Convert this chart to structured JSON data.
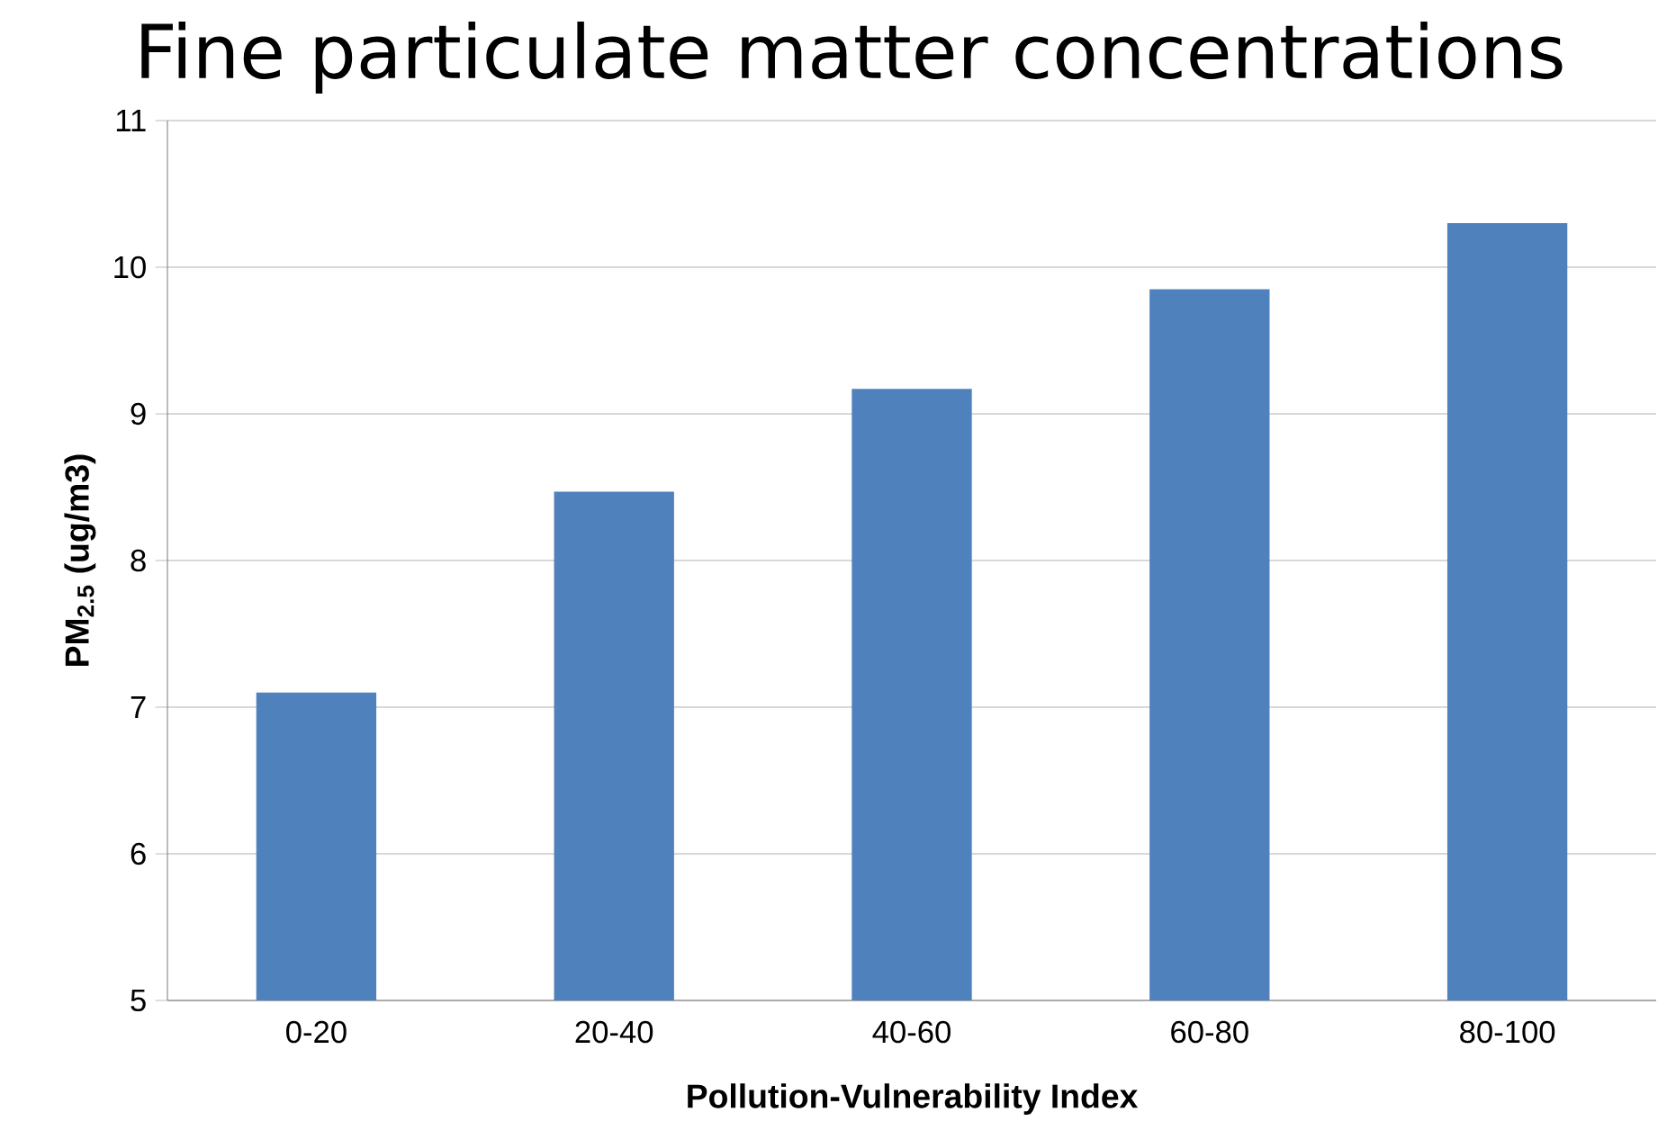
{
  "chart_data": {
    "type": "bar",
    "title": "Fine particulate matter concentrations",
    "xlabel": "Pollution-Vulnerability Index",
    "ylabel": "PM$_{2.5}$ (ug/m3)",
    "categories": [
      "0-20",
      "20-40",
      "40-60",
      "60-80",
      "80-100"
    ],
    "values": [
      7.1,
      8.47,
      9.17,
      9.85,
      10.3
    ],
    "color": "#4f81bd",
    "ylim": [
      5,
      11
    ],
    "yticks": [
      5,
      6,
      7,
      8,
      9,
      10,
      11
    ],
    "grid": "y"
  }
}
